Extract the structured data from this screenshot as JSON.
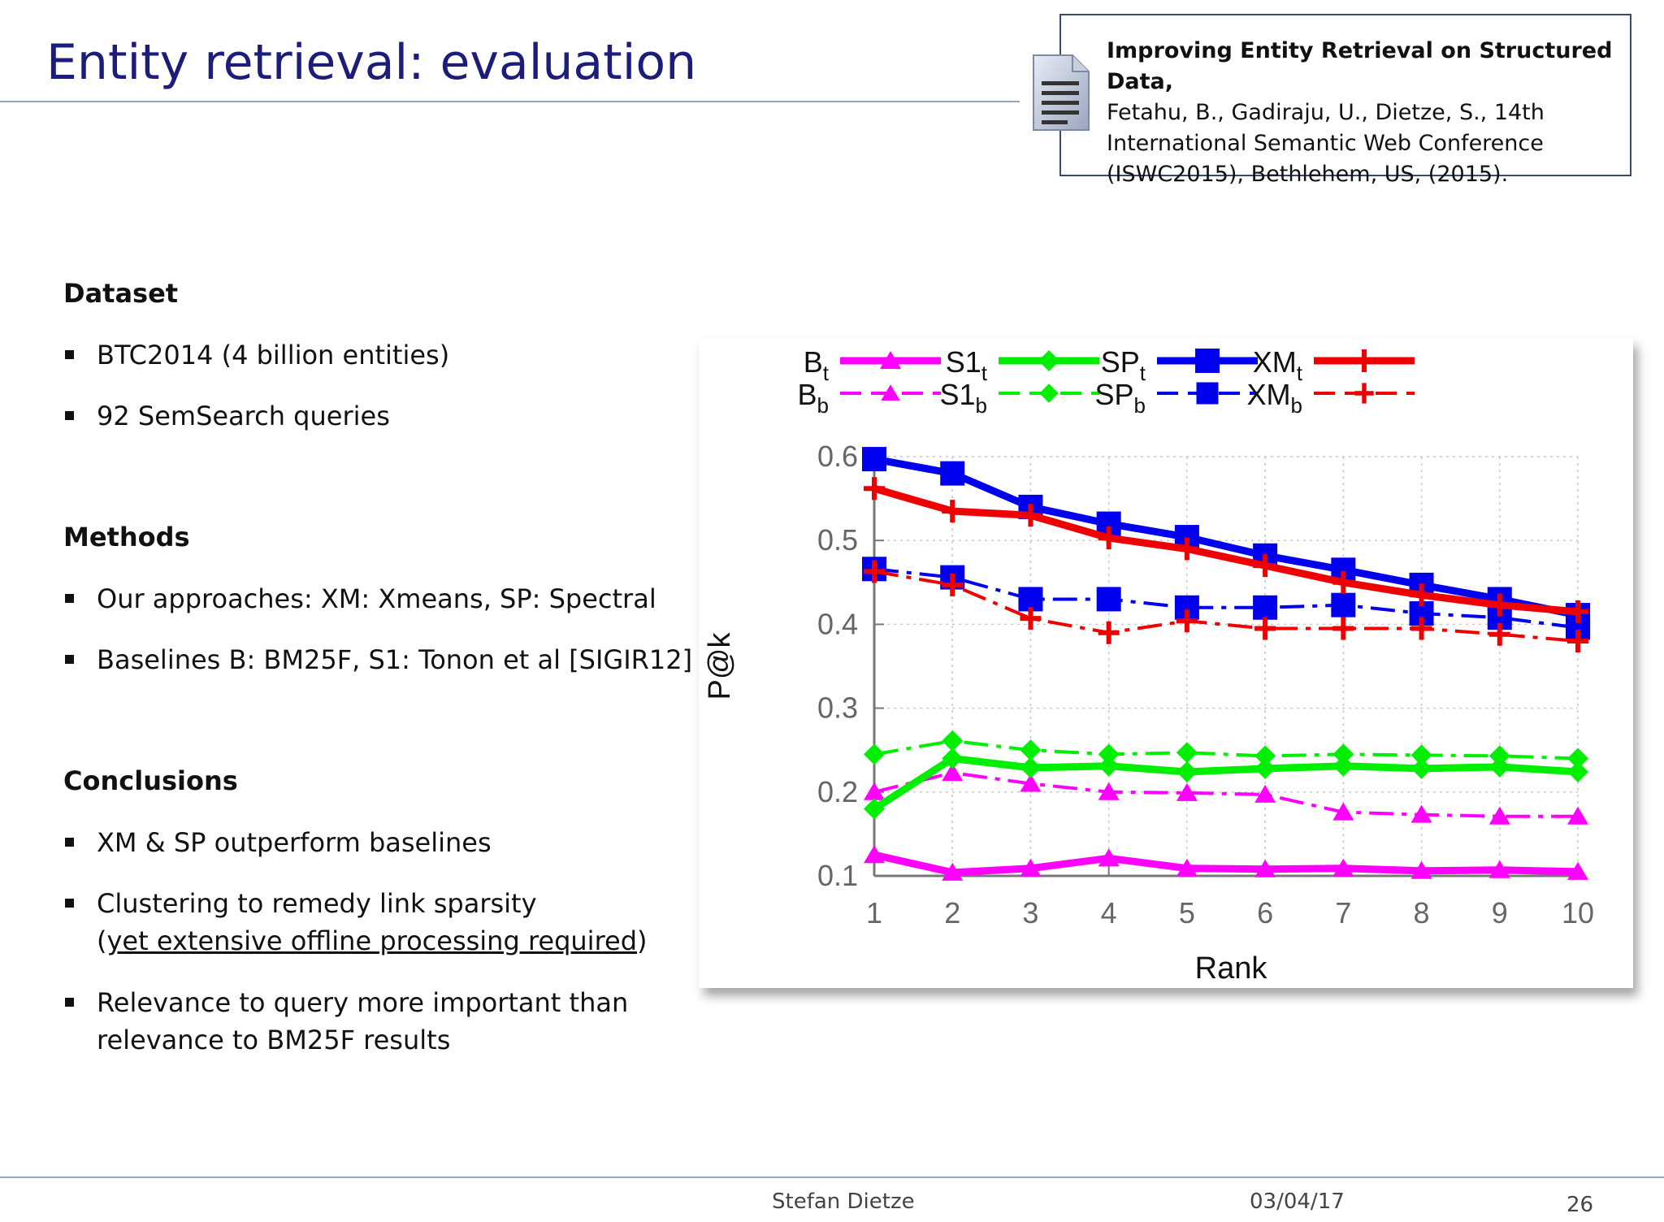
{
  "slide": {
    "title": "Entity retrieval: evaluation",
    "reference": {
      "bold": "Improving Entity Retrieval on Structured Data,",
      "lines": [
        "Fetahu, B., Gadiraju, U., Dietze, S., 14th",
        "International Semantic Web Conference",
        "(ISWC2015), Bethlehem, US, (2015)."
      ]
    },
    "sections": [
      {
        "heading": "Dataset",
        "bullets": [
          "BTC2014 (4 billion entities)",
          "92 SemSearch queries"
        ]
      },
      {
        "heading": "Methods",
        "bullets": [
          "Our approaches: XM: Xmeans, SP: Spectral",
          "Baselines B: BM25F, S1: Tonon et al [SIGIR12]"
        ]
      },
      {
        "heading": "Conclusions",
        "bullets": [
          "XM & SP outperform baselines",
          "Clustering to remedy link sparsity",
          "Relevance to query more important than"
        ]
      }
    ],
    "conclusion_extra": {
      "line2_open": "(",
      "line2_underlined": "yet extensive offline processing required",
      "line2_close": ")",
      "line3b": "relevance to BM25F results"
    },
    "footer": {
      "author": "Stefan Dietze",
      "date": "03/04/17",
      "page": "26"
    }
  },
  "colors": {
    "B": "#ff00ff",
    "S1": "#00ee00",
    "SP": "#0000ee",
    "XM": "#ee0000",
    "title": "#1c1c7a"
  },
  "chart_data": {
    "type": "line",
    "xlabel": "Rank",
    "ylabel": "P@k",
    "xlim": [
      1,
      10
    ],
    "ylim": [
      0.1,
      0.6
    ],
    "x": [
      1,
      2,
      3,
      4,
      5,
      6,
      7,
      8,
      9,
      10
    ],
    "yticks": [
      "0.1",
      "0.2",
      "0.3",
      "0.4",
      "0.5",
      "0.6"
    ],
    "xticks": [
      "1",
      "2",
      "3",
      "4",
      "5",
      "6",
      "7",
      "8",
      "9",
      "10"
    ],
    "grid": true,
    "legend_position": "top",
    "series": [
      {
        "name": "B",
        "sub": "t",
        "color": "#ff00ff",
        "marker": "triangle",
        "dashed": false,
        "values": [
          0.125,
          0.104,
          0.109,
          0.121,
          0.109,
          0.108,
          0.109,
          0.106,
          0.107,
          0.105
        ]
      },
      {
        "name": "S1",
        "sub": "t",
        "color": "#00ee00",
        "marker": "diamond",
        "dashed": false,
        "values": [
          0.18,
          0.24,
          0.229,
          0.231,
          0.224,
          0.228,
          0.231,
          0.228,
          0.23,
          0.224
        ]
      },
      {
        "name": "SP",
        "sub": "t",
        "color": "#0000ee",
        "marker": "square",
        "dashed": false,
        "values": [
          0.597,
          0.58,
          0.54,
          0.52,
          0.504,
          0.482,
          0.465,
          0.447,
          0.43,
          0.411
        ]
      },
      {
        "name": "XM",
        "sub": "t",
        "color": "#ee0000",
        "marker": "plus",
        "dashed": false,
        "values": [
          0.562,
          0.535,
          0.53,
          0.503,
          0.49,
          0.47,
          0.45,
          0.435,
          0.423,
          0.415
        ]
      },
      {
        "name": "B",
        "sub": "b",
        "color": "#ff00ff",
        "marker": "triangle",
        "dashed": true,
        "values": [
          0.2,
          0.223,
          0.21,
          0.2,
          0.199,
          0.197,
          0.176,
          0.173,
          0.171,
          0.171
        ]
      },
      {
        "name": "S1",
        "sub": "b",
        "color": "#00ee00",
        "marker": "diamond",
        "dashed": true,
        "values": [
          0.245,
          0.261,
          0.25,
          0.245,
          0.247,
          0.243,
          0.245,
          0.244,
          0.243,
          0.24
        ]
      },
      {
        "name": "SP",
        "sub": "b",
        "color": "#0000ee",
        "marker": "square",
        "dashed": true,
        "values": [
          0.466,
          0.456,
          0.43,
          0.43,
          0.42,
          0.42,
          0.423,
          0.413,
          0.408,
          0.396
        ]
      },
      {
        "name": "XM",
        "sub": "b",
        "color": "#ee0000",
        "marker": "plus",
        "dashed": true,
        "values": [
          0.463,
          0.447,
          0.407,
          0.39,
          0.404,
          0.395,
          0.395,
          0.395,
          0.388,
          0.38
        ]
      }
    ]
  }
}
